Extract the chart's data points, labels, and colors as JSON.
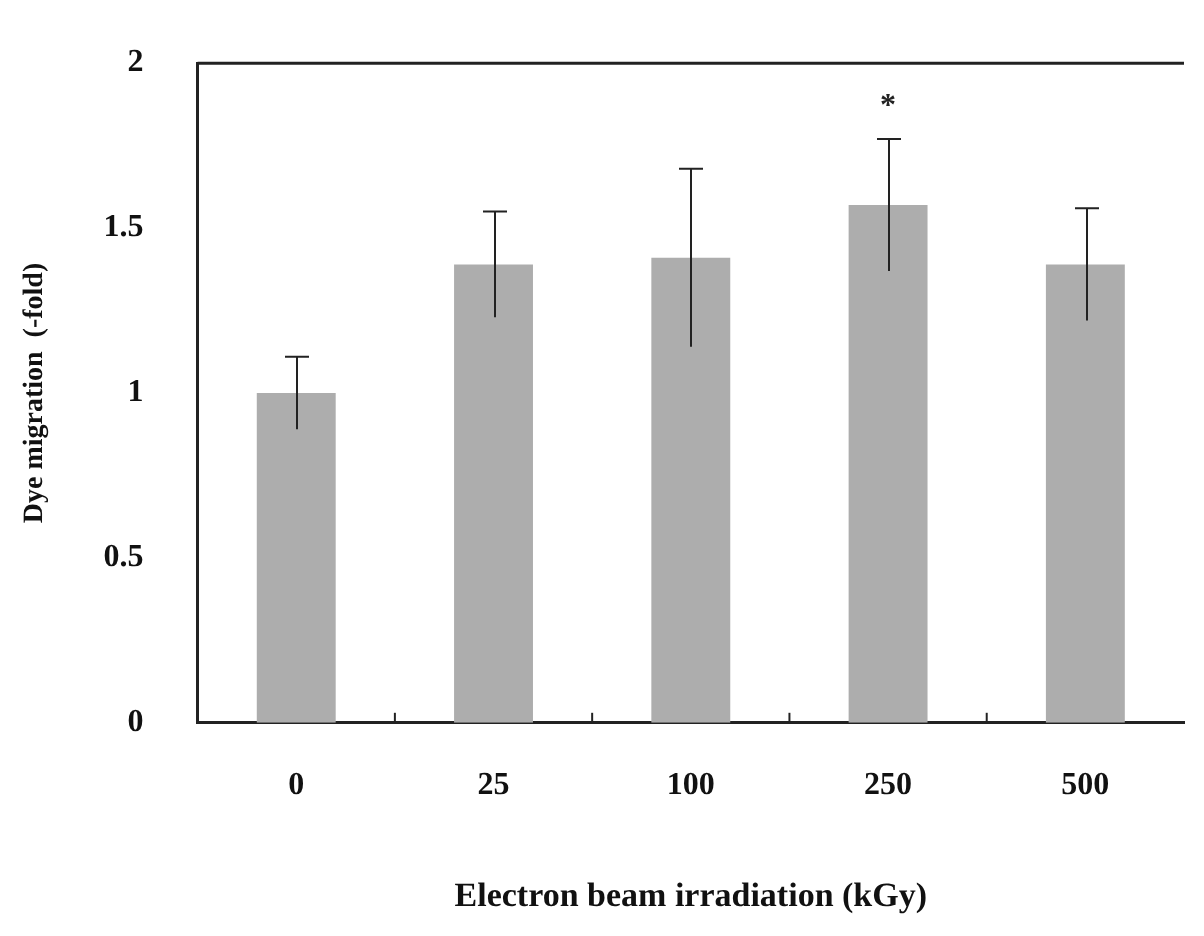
{
  "chart_data": {
    "type": "bar",
    "xlabel": "Electron beam irradiation (kGy)",
    "ylabel": "Dye migration  (-fold)",
    "categories": [
      "0",
      "25",
      "100",
      "250",
      "500"
    ],
    "values": [
      1.0,
      1.39,
      1.41,
      1.57,
      1.39
    ],
    "errors": [
      0.11,
      0.16,
      0.27,
      0.2,
      0.17
    ],
    "color": "#adadad",
    "ylim": [
      0,
      2
    ],
    "yticks": [
      0,
      0.5,
      1,
      1.5,
      2
    ],
    "grid": false,
    "legend": false,
    "annotations": [
      "*"
    ]
  }
}
